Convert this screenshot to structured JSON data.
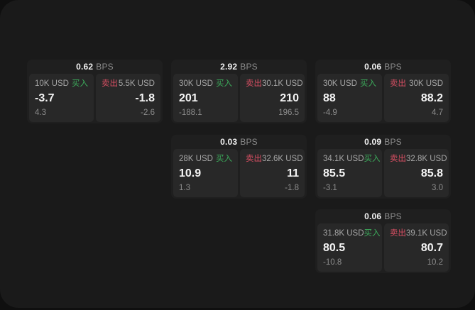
{
  "labels": {
    "bps": "BPS",
    "buy": "买入",
    "sell": "卖出"
  },
  "colors": {
    "buy_green": "#3cab5b",
    "sell_red": "#d94f63",
    "price_white": "#f4f4f4",
    "muted_gray": "#8d8d8d"
  },
  "cards": [
    {
      "col": 1,
      "row": 1,
      "bps": "0.62",
      "buy": {
        "amount": "10K USD",
        "price": "-3.7",
        "delta": "4.3"
      },
      "sell": {
        "amount": "5.5K USD",
        "price": "-1.8",
        "delta": "-2.6"
      }
    },
    {
      "col": 2,
      "row": 1,
      "bps": "2.92",
      "buy": {
        "amount": "30K USD",
        "price": "201",
        "delta": "-188.1"
      },
      "sell": {
        "amount": "30.1K USD",
        "price": "210",
        "delta": "196.5"
      }
    },
    {
      "col": 3,
      "row": 1,
      "bps": "0.06",
      "buy": {
        "amount": "30K USD",
        "price": "88",
        "delta": "-4.9"
      },
      "sell": {
        "amount": "30K USD",
        "price": "88.2",
        "delta": "4.7"
      }
    },
    {
      "col": 2,
      "row": 2,
      "bps": "0.03",
      "buy": {
        "amount": "28K USD",
        "price": "10.9",
        "delta": "1.3"
      },
      "sell": {
        "amount": "32.6K USD",
        "price": "11",
        "delta": "-1.8"
      }
    },
    {
      "col": 3,
      "row": 2,
      "bps": "0.09",
      "buy": {
        "amount": "34.1K USD",
        "price": "85.5",
        "delta": "-3.1"
      },
      "sell": {
        "amount": "32.8K USD",
        "price": "85.8",
        "delta": "3.0"
      }
    },
    {
      "col": 3,
      "row": 3,
      "bps": "0.06",
      "buy": {
        "amount": "31.8K USD",
        "price": "80.5",
        "delta": "-10.8"
      },
      "sell": {
        "amount": "39.1K USD",
        "price": "80.7",
        "delta": "10.2"
      }
    }
  ]
}
